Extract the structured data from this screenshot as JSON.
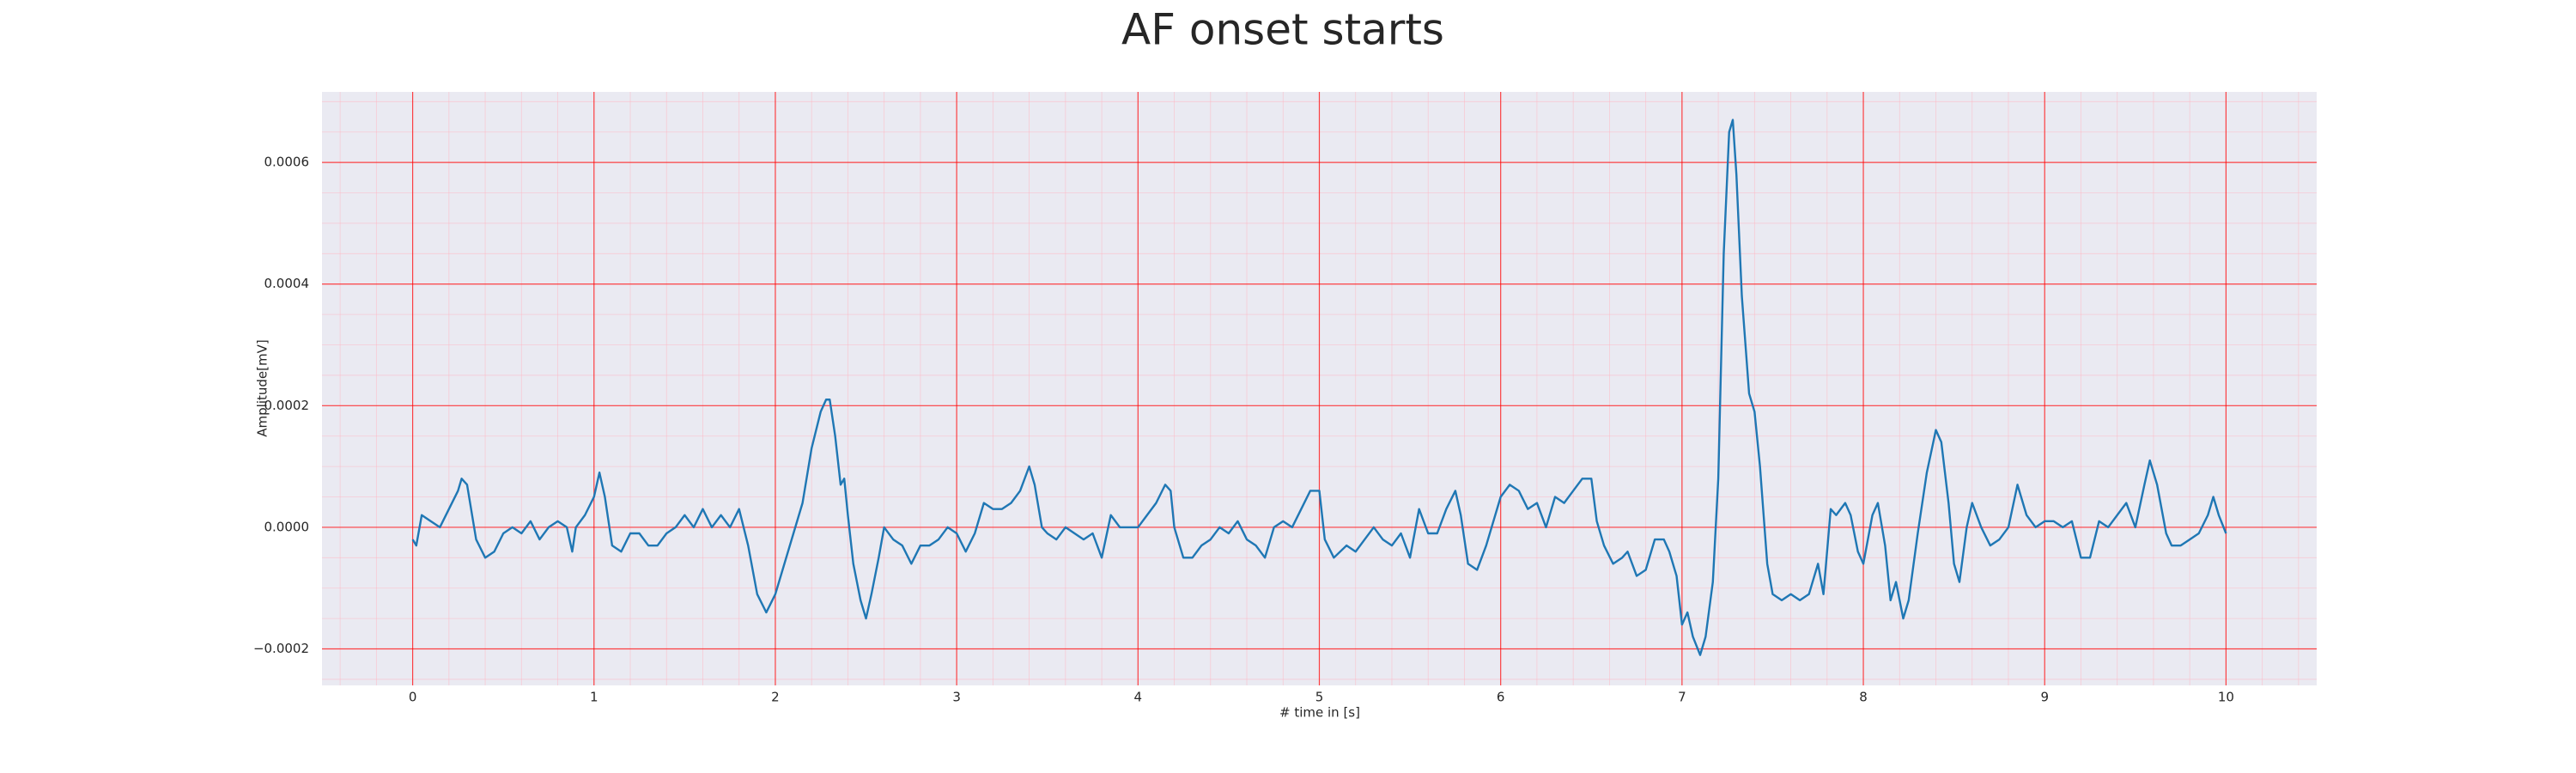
{
  "chart_data": {
    "type": "line",
    "title": "AF onset starts",
    "xlabel": "# time in [s]",
    "ylabel": "Amplitude[mV]",
    "xlim": [
      -0.5,
      10.5
    ],
    "ylim": [
      -0.00026,
      0.000716
    ],
    "xticks": [
      0,
      1,
      2,
      3,
      4,
      5,
      6,
      7,
      8,
      9,
      10
    ],
    "yticks": [
      {
        "value": -0.0002,
        "label": "−0.0002"
      },
      {
        "value": 0,
        "label": "0.0000"
      },
      0.0002,
      0.0004,
      0.0006
    ],
    "grid": true,
    "minor_grid": true,
    "background": "#eaeaf2",
    "grid_color": "#ff0000",
    "minor_grid_color": "#ffb6c1",
    "series": [
      {
        "color": "#1f77b4",
        "x": [
          0,
          0.02,
          0.05,
          0.1,
          0.15,
          0.2,
          0.25,
          0.27,
          0.3,
          0.35,
          0.4,
          0.45,
          0.5,
          0.55,
          0.6,
          0.65,
          0.7,
          0.75,
          0.8,
          0.85,
          0.88,
          0.9,
          0.95,
          1.0,
          1.03,
          1.06,
          1.1,
          1.15,
          1.2,
          1.25,
          1.3,
          1.35,
          1.4,
          1.45,
          1.5,
          1.55,
          1.6,
          1.65,
          1.7,
          1.75,
          1.8,
          1.85,
          1.9,
          1.95,
          2.0,
          2.05,
          2.1,
          2.15,
          2.2,
          2.25,
          2.28,
          2.3,
          2.33,
          2.36,
          2.38,
          2.4,
          2.43,
          2.47,
          2.5,
          2.53,
          2.57,
          2.6,
          2.65,
          2.7,
          2.75,
          2.8,
          2.85,
          2.9,
          2.95,
          3.0,
          3.05,
          3.1,
          3.15,
          3.2,
          3.25,
          3.3,
          3.35,
          3.4,
          3.43,
          3.47,
          3.5,
          3.55,
          3.6,
          3.65,
          3.7,
          3.75,
          3.8,
          3.85,
          3.9,
          3.95,
          4.0,
          4.05,
          4.1,
          4.15,
          4.18,
          4.2,
          4.25,
          4.3,
          4.35,
          4.4,
          4.45,
          4.5,
          4.55,
          4.6,
          4.65,
          4.7,
          4.75,
          4.8,
          4.85,
          4.9,
          4.95,
          5.0,
          5.03,
          5.08,
          5.15,
          5.2,
          5.25,
          5.3,
          5.35,
          5.4,
          5.45,
          5.5,
          5.55,
          5.6,
          5.65,
          5.7,
          5.75,
          5.78,
          5.82,
          5.87,
          5.92,
          5.97,
          6.0,
          6.05,
          6.1,
          6.15,
          6.2,
          6.25,
          6.3,
          6.35,
          6.4,
          6.45,
          6.5,
          6.53,
          6.57,
          6.62,
          6.67,
          6.7,
          6.75,
          6.8,
          6.85,
          6.9,
          6.93,
          6.97,
          7.0,
          7.03,
          7.06,
          7.1,
          7.13,
          7.17,
          7.2,
          7.23,
          7.26,
          7.28,
          7.3,
          7.33,
          7.37,
          7.4,
          7.43,
          7.47,
          7.5,
          7.55,
          7.6,
          7.65,
          7.7,
          7.75,
          7.78,
          7.82,
          7.85,
          7.9,
          7.93,
          7.97,
          8.0,
          8.05,
          8.08,
          8.12,
          8.15,
          8.18,
          8.22,
          8.25,
          8.3,
          8.35,
          8.4,
          8.43,
          8.47,
          8.5,
          8.53,
          8.57,
          8.6,
          8.65,
          8.7,
          8.75,
          8.8,
          8.85,
          8.9,
          8.95,
          9.0,
          9.05,
          9.1,
          9.15,
          9.2,
          9.25,
          9.3,
          9.35,
          9.4,
          9.45,
          9.5,
          9.55,
          9.58,
          9.62,
          9.67,
          9.7,
          9.75,
          9.8,
          9.85,
          9.9,
          9.93,
          9.96,
          10.0
        ],
        "values": [
          -2e-05,
          -3e-05,
          2e-05,
          1e-05,
          0,
          3e-05,
          6e-05,
          8e-05,
          7e-05,
          -2e-05,
          -5e-05,
          -4e-05,
          -1e-05,
          0,
          -1e-05,
          1e-05,
          -2e-05,
          0,
          1e-05,
          0,
          -4e-05,
          0,
          2e-05,
          5e-05,
          9e-05,
          5e-05,
          -3e-05,
          -4e-05,
          -1e-05,
          -1e-05,
          -3e-05,
          -3e-05,
          -1e-05,
          0,
          2e-05,
          0,
          3e-05,
          0,
          2e-05,
          0,
          3e-05,
          -3e-05,
          -0.00011,
          -0.00014,
          -0.00011,
          -6e-05,
          -1e-05,
          4e-05,
          0.00013,
          0.00019,
          0.00021,
          0.00021,
          0.00015,
          7e-05,
          8e-05,
          2e-05,
          -6e-05,
          -0.00012,
          -0.00015,
          -0.00011,
          -5e-05,
          0,
          -2e-05,
          -3e-05,
          -6e-05,
          -3e-05,
          -3e-05,
          -2e-05,
          0,
          -1e-05,
          -4e-05,
          -1e-05,
          4e-05,
          3e-05,
          3e-05,
          4e-05,
          6e-05,
          0.0001,
          7e-05,
          0,
          -1e-05,
          -2e-05,
          0,
          -1e-05,
          -2e-05,
          -1e-05,
          -5e-05,
          2e-05,
          0,
          0,
          0,
          2e-05,
          4e-05,
          7e-05,
          6e-05,
          0,
          -5e-05,
          -5e-05,
          -3e-05,
          -2e-05,
          0,
          -1e-05,
          1e-05,
          -2e-05,
          -3e-05,
          -5e-05,
          0,
          1e-05,
          0,
          3e-05,
          6e-05,
          6e-05,
          -2e-05,
          -5e-05,
          -3e-05,
          -4e-05,
          -2e-05,
          0,
          -2e-05,
          -3e-05,
          -1e-05,
          -5e-05,
          3e-05,
          -1e-05,
          -1e-05,
          3e-05,
          6e-05,
          2e-05,
          -6e-05,
          -7e-05,
          -3e-05,
          2e-05,
          5e-05,
          7e-05,
          6e-05,
          3e-05,
          4e-05,
          0,
          5e-05,
          4e-05,
          6e-05,
          8e-05,
          8e-05,
          1e-05,
          -3e-05,
          -6e-05,
          -5e-05,
          -4e-05,
          -8e-05,
          -7e-05,
          -2e-05,
          -2e-05,
          -4e-05,
          -8e-05,
          -0.00016,
          -0.00014,
          -0.00018,
          -0.00021,
          -0.00018,
          -9e-05,
          8e-05,
          0.00045,
          0.00065,
          0.00067,
          0.00058,
          0.00038,
          0.00022,
          0.00019,
          0.0001,
          -6e-05,
          -0.00011,
          -0.00012,
          -0.00011,
          -0.00012,
          -0.00011,
          -6e-05,
          -0.00011,
          3e-05,
          2e-05,
          4e-05,
          2e-05,
          -4e-05,
          -6e-05,
          2e-05,
          4e-05,
          -3e-05,
          -0.00012,
          -9e-05,
          -0.00015,
          -0.00012,
          -1e-05,
          9e-05,
          0.00016,
          0.00014,
          4e-05,
          -6e-05,
          -9e-05,
          0,
          4e-05,
          0,
          -3e-05,
          -2e-05,
          0,
          7e-05,
          2e-05,
          0,
          1e-05,
          1e-05,
          0,
          1e-05,
          -5e-05,
          -5e-05,
          1e-05,
          0,
          2e-05,
          4e-05,
          0,
          7e-05,
          0.00011,
          7e-05,
          -1e-05,
          -3e-05,
          -3e-05,
          -2e-05,
          -1e-05,
          2e-05,
          5e-05,
          2e-05,
          -1e-05
        ]
      }
    ]
  }
}
